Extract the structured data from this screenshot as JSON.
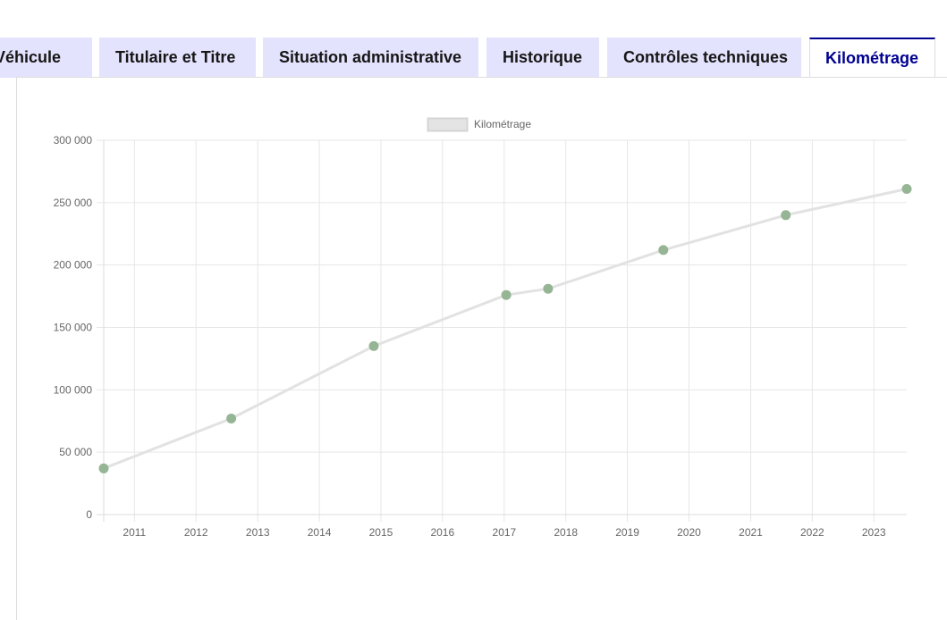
{
  "tabs": [
    {
      "label": "Véhicule",
      "active": false
    },
    {
      "label": "Titulaire et Titre",
      "active": false
    },
    {
      "label": "Situation administrative",
      "active": false
    },
    {
      "label": "Historique",
      "active": false
    },
    {
      "label": "Contrôles techniques",
      "active": false
    },
    {
      "label": "Kilométrage",
      "active": true
    }
  ],
  "colors": {
    "tab_bg": "#e3e3fd",
    "tab_active_border": "#000091",
    "point": "#95b595",
    "line": "#e2e2e2"
  },
  "chart_data": {
    "type": "line",
    "legend": {
      "label": "Kilométrage",
      "placement": "top-center"
    },
    "series": [
      {
        "name": "Kilométrage",
        "x": [
          "2010-07-03",
          "2012-07-28",
          "2014-11-20",
          "2017-01-13",
          "2017-09-18",
          "2019-08-02",
          "2021-07-28",
          "2023-07-15"
        ],
        "y": [
          37000,
          77000,
          135000,
          176000,
          181000,
          212000,
          240000,
          261000
        ]
      }
    ],
    "y_ticks": [
      "0",
      "50 000",
      "100 000",
      "150 000",
      "200 000",
      "250 000",
      "300 000"
    ],
    "x_ticks": [
      "2011",
      "2012",
      "2013",
      "2014",
      "2015",
      "2016",
      "2017",
      "2018",
      "2019",
      "2020",
      "2021",
      "2022",
      "2023"
    ],
    "ylim": [
      0,
      300000
    ],
    "xlim": [
      "2010-07-03",
      "2023-07-15"
    ],
    "grid": true
  }
}
